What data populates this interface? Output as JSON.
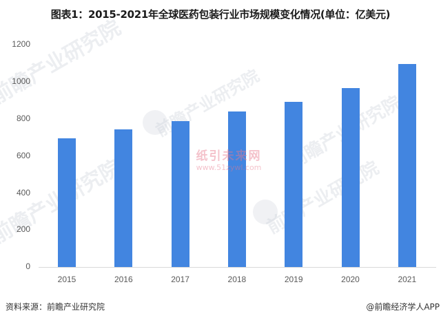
{
  "title": "图表1：2015-2021年全球医药包装行业市场规模变化情况(单位：亿美元)",
  "chart_data": {
    "type": "bar",
    "title": "图表1：2015-2021年全球医药包装行业市场规模变化情况(单位：亿美元)",
    "xlabel": "",
    "ylabel": "",
    "unit": "亿美元",
    "categories": [
      "2015",
      "2016",
      "2017",
      "2018",
      "2019",
      "2020",
      "2021"
    ],
    "values": [
      697,
      743,
      788,
      839,
      892,
      965,
      1096
    ],
    "ylim": [
      0,
      1200
    ],
    "yticks": [
      "0",
      "200",
      "400",
      "600",
      "800",
      "1000",
      "1200"
    ],
    "grid": false,
    "legend": null,
    "bar_color": "#4285e0"
  },
  "watermarks": {
    "org": "前瞻产业研究院",
    "partner_cn": "纸引未来网",
    "partner_url": "www.51zywl.com"
  },
  "footer": {
    "source": "资料来源：前瞻产业研究院",
    "credit": "@前瞻经济学人APP"
  }
}
